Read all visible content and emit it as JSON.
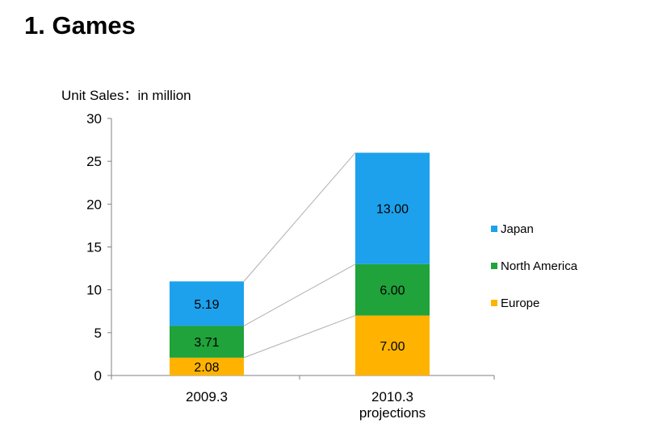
{
  "page": {
    "title": "1. Games"
  },
  "chart_data": {
    "type": "bar",
    "stacked": true,
    "title": "",
    "xlabel": "",
    "ylabel": "Unit Sales：in million",
    "ylim": [
      0,
      30
    ],
    "yticks": [
      0,
      5,
      10,
      15,
      20,
      25,
      30
    ],
    "grid": false,
    "legend_position": "right",
    "categories": [
      [
        "2009.3"
      ],
      [
        "2010.3",
        "projections"
      ]
    ],
    "series": [
      {
        "name": "Europe",
        "color": "#FFB300",
        "values": [
          2.08,
          7.0
        ],
        "labels": [
          "2.08",
          "7.00"
        ]
      },
      {
        "name": "North America",
        "color": "#1FA33A",
        "values": [
          3.71,
          6.0
        ],
        "labels": [
          "3.71",
          "6.00"
        ]
      },
      {
        "name": "Japan",
        "color": "#1DA1EC",
        "values": [
          5.19,
          13.0
        ],
        "labels": [
          "5.19",
          "13.00"
        ]
      }
    ],
    "legend_order": [
      "Japan",
      "North America",
      "Europe"
    ],
    "connector_lines": true,
    "connector_color": "#b0b0b0"
  }
}
